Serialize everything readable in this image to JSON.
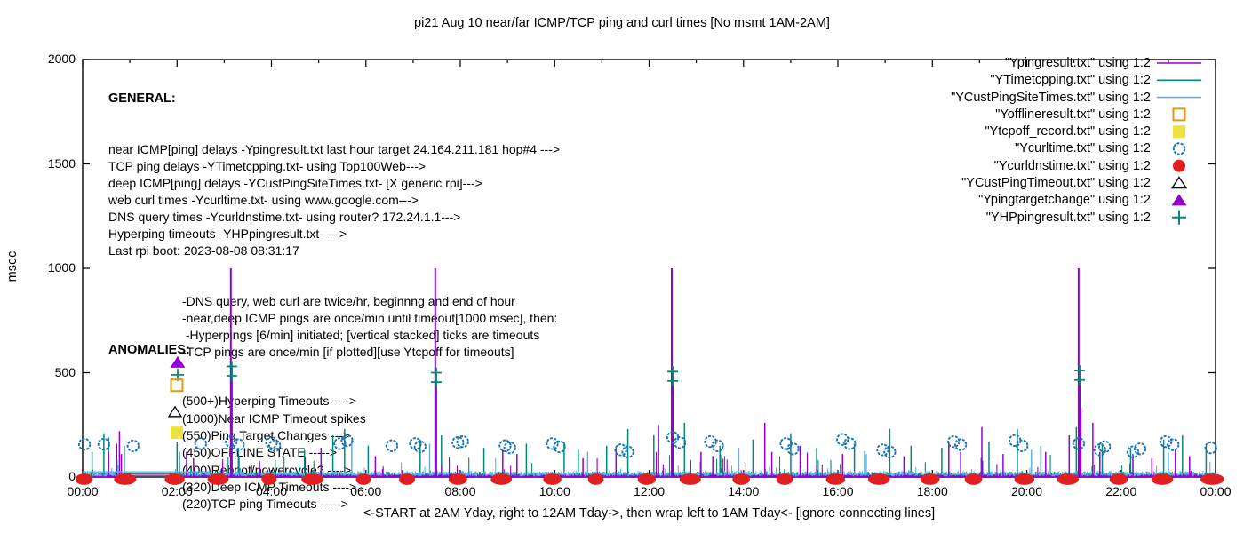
{
  "title": "pi21 Aug 10  near/far ICMP/TCP ping and curl times [No msmt 1AM-2AM]",
  "xcaption": "<-START at 2AM Yday, right to 12AM Tday->, then wrap left to 1AM Tday<- [ignore connecting lines]",
  "annotations": {
    "general": {
      "heading": "GENERAL:",
      "lines": [
        "near ICMP[ping] delays -Ypingresult.txt last hour target 24.164.211.181 hop#4 --->",
        "TCP ping delays -YTimetcpping.txt- using Top100Web--->",
        "deep ICMP[ping] delays -YCustPingSiteTimes.txt- [X generic rpi]--->",
        "web curl times -Ycurltime.txt- using www.google.com--->",
        "DNS query times -Ycurldnstime.txt- using router? 172.24.1.1--->",
        "Hyperping timeouts -YHPpingresult.txt- --->",
        "Last rpi boot: 2023-08-08 08:31:17"
      ],
      "indented_lines": [
        "-DNS query, web curl are twice/hr, beginnng and end of hour",
        "-near,deep ICMP pings are once/min until timeout[1000 msec], then:",
        " -Hyperpings [6/min] initiated; [vertical stacked] ticks are timeouts",
        "-TCP pings are once/min [if plotted][use Ytcpoff for timeouts]"
      ]
    },
    "anomalies": {
      "heading": "ANOMALIES:",
      "lines": [
        {
          "text": "(500+)Hyperping Timeouts ---->",
          "marker": "none"
        },
        {
          "text": "(1000)Near ICMP Timeout spikes",
          "marker": "none"
        },
        {
          "text": "(550)Ping Target Changes --->",
          "marker": "triangle-filled-plus"
        },
        {
          "text": "(450)OFFLINE STATE ----->",
          "marker": "square-open"
        },
        {
          "text": "(400)Reboot/powercycle? ---->",
          "marker": "none"
        },
        {
          "text": "(320)Deep ICMP Timeouts ---->",
          "marker": "triangle-open"
        },
        {
          "text": "(220)TCP ping Timeouts ----->",
          "marker": "square-filled"
        }
      ]
    }
  },
  "legend": [
    {
      "label": "\"Ypingresult.txt\" using 1:2",
      "marker": "line",
      "color": "#9400D3"
    },
    {
      "label": "\"YTimetcpping.txt\" using 1:2",
      "marker": "line",
      "color": "#00897B"
    },
    {
      "label": "\"YCustPingSiteTimes.txt\" using 1:2",
      "marker": "line",
      "color": "#56B4E9"
    },
    {
      "label": "\"Yofflineresult.txt\" using 1:2",
      "marker": "square-open",
      "color": "#E8960C"
    },
    {
      "label": "\"Ytcpoff_record.txt\" using 1:2",
      "marker": "square-filled",
      "color": "#EDE13F"
    },
    {
      "label": "\"Ycurltime.txt\" using 1:2",
      "marker": "circle-open",
      "color": "#1673B5"
    },
    {
      "label": "\"Ycurldnstime.txt\" using 1:2",
      "marker": "circle-filled",
      "color": "#E02020"
    },
    {
      "label": "\"YCustPingTimeout.txt\" using 1:2",
      "marker": "triangle-open",
      "color": "#000000"
    },
    {
      "label": "\"Ypingtargetchange\" using 1:2",
      "marker": "triangle-filled",
      "color": "#9400D3"
    },
    {
      "label": "\"YHPpingresult.txt\" using 1:2",
      "marker": "plus",
      "color": "#00897B"
    }
  ],
  "chart_data": {
    "type": "line",
    "title": "pi21 Aug 10  near/far ICMP/TCP ping and curl times [No msmt 1AM-2AM]",
    "xlabel": "<-START at 2AM Yday, right to 12AM Tday->, then wrap left to 1AM Tday<- [ignore connecting lines]",
    "ylabel": "msec",
    "x_axis": {
      "range_hours": [
        0,
        24
      ],
      "major_tick_hours": 2,
      "minor_tick_hours": 1,
      "tick_labels": [
        "00:00",
        "02:00",
        "04:00",
        "06:00",
        "08:00",
        "10:00",
        "12:00",
        "14:00",
        "16:00",
        "18:00",
        "20:00",
        "22:00",
        "00:00"
      ]
    },
    "y_axis": {
      "range": [
        0,
        2000
      ],
      "ticks": [
        0,
        500,
        1000,
        1500,
        2000
      ]
    },
    "no_measurement_gap_hours": [
      0.9,
      1.95
    ],
    "connecting_lines": [
      {
        "color": "#56B4E9",
        "from_hour": 0.0,
        "to_hour": 2.7,
        "msec": 25
      },
      {
        "color": "#00897B",
        "from_hour": 0.9,
        "to_hour": 1.95,
        "msec": 16
      },
      {
        "color": "#9400D3",
        "from_hour": 0.9,
        "to_hour": 1.95,
        "msec": 8
      }
    ],
    "noise_series": [
      {
        "name": "YTimetcpping.txt",
        "color": "#00897B",
        "seed": 42,
        "base_min": 5,
        "base_max": 26,
        "spike_prob": 0.05,
        "spike_max": 130,
        "spikes": [
          [
            0.2,
            120
          ],
          [
            0.45,
            210
          ],
          [
            0.55,
            190
          ],
          [
            0.88,
            150
          ],
          [
            2.0,
            170
          ],
          [
            2.05,
            120
          ],
          [
            3.3,
            140
          ],
          [
            4.7,
            130
          ],
          [
            5.3,
            200
          ],
          [
            5.55,
            230
          ],
          [
            6.05,
            150
          ],
          [
            7.15,
            180
          ],
          [
            7.6,
            200
          ],
          [
            8.5,
            140
          ],
          [
            9.4,
            160
          ],
          [
            10.2,
            170
          ],
          [
            10.5,
            130
          ],
          [
            11.1,
            150
          ],
          [
            11.55,
            230
          ],
          [
            12.1,
            200
          ],
          [
            12.75,
            260
          ],
          [
            13.5,
            150
          ],
          [
            14.2,
            180
          ],
          [
            15.0,
            210
          ],
          [
            15.55,
            140
          ],
          [
            16.35,
            160
          ],
          [
            17.1,
            230
          ],
          [
            17.55,
            150
          ],
          [
            18.2,
            140
          ],
          [
            19.2,
            170
          ],
          [
            19.8,
            230
          ],
          [
            20.3,
            150
          ],
          [
            21.05,
            240
          ],
          [
            21.6,
            160
          ],
          [
            22.2,
            140
          ],
          [
            22.9,
            180
          ],
          [
            23.3,
            200
          ],
          [
            23.8,
            150
          ]
        ]
      },
      {
        "name": "YCustPingSiteTimes.txt",
        "color": "#56B4E9",
        "seed": 7,
        "base_min": 3,
        "base_max": 30,
        "spike_prob": 0.03,
        "spike_max": 100,
        "spikes": [
          [
            5.7,
            180
          ],
          [
            7.35,
            160
          ],
          [
            10.7,
            120
          ],
          [
            13.9,
            140
          ],
          [
            16.6,
            110
          ],
          [
            20.1,
            130
          ],
          [
            23.0,
            120
          ]
        ]
      },
      {
        "name": "Ypingresult.txt",
        "color": "#9400D3",
        "seed": 13,
        "base_min": 2,
        "base_max": 12,
        "spike_prob": 0.02,
        "spike_max": 140,
        "spikes": [
          [
            0.55,
            120
          ],
          [
            0.72,
            160
          ],
          [
            0.78,
            220
          ],
          [
            0.82,
            110
          ],
          [
            2.2,
            120
          ],
          [
            2.35,
            90
          ],
          [
            5.05,
            140
          ],
          [
            6.2,
            100
          ],
          [
            8.9,
            130
          ],
          [
            9.2,
            110
          ],
          [
            10.6,
            90
          ],
          [
            11.3,
            140
          ],
          [
            12.2,
            250
          ],
          [
            13.1,
            120
          ],
          [
            13.35,
            100
          ],
          [
            14.45,
            260
          ],
          [
            14.6,
            120
          ],
          [
            15.2,
            150
          ],
          [
            16.1,
            110
          ],
          [
            17.4,
            100
          ],
          [
            18.35,
            170
          ],
          [
            18.6,
            120
          ],
          [
            19.05,
            240
          ],
          [
            19.5,
            110
          ],
          [
            20.4,
            120
          ],
          [
            20.9,
            200
          ],
          [
            21.4,
            260
          ],
          [
            21.55,
            120
          ],
          [
            22.25,
            110
          ],
          [
            22.65,
            90
          ],
          [
            23.15,
            130
          ],
          [
            23.45,
            100
          ]
        ],
        "timeout_spikes": [
          [
            3.14,
            1000
          ],
          [
            3.16,
            530
          ],
          [
            7.47,
            1000
          ],
          [
            7.49,
            500
          ],
          [
            12.48,
            1000
          ],
          [
            12.5,
            505
          ],
          [
            21.1,
            1000
          ],
          [
            21.12,
            510
          ],
          [
            21.14,
            330
          ]
        ]
      }
    ],
    "marker_series": [
      {
        "name": "Ycurltime.txt",
        "marker": "circle-open",
        "color": "#1673B5",
        "points": [
          [
            0.04,
            157
          ],
          [
            0.45,
            157
          ],
          [
            1.07,
            149
          ],
          [
            2.5,
            160
          ],
          [
            3.15,
            170
          ],
          [
            3.3,
            155
          ],
          [
            4.0,
            165
          ],
          [
            4.07,
            150
          ],
          [
            5.45,
            160
          ],
          [
            5.6,
            175
          ],
          [
            6.55,
            150
          ],
          [
            7.05,
            160
          ],
          [
            7.15,
            145
          ],
          [
            7.95,
            165
          ],
          [
            8.05,
            170
          ],
          [
            8.95,
            150
          ],
          [
            9.05,
            140
          ],
          [
            9.95,
            160
          ],
          [
            10.1,
            145
          ],
          [
            11.4,
            130
          ],
          [
            11.55,
            120
          ],
          [
            12.5,
            190
          ],
          [
            12.65,
            165
          ],
          [
            13.3,
            170
          ],
          [
            13.45,
            150
          ],
          [
            14.9,
            160
          ],
          [
            15.05,
            135
          ],
          [
            16.1,
            180
          ],
          [
            16.25,
            160
          ],
          [
            16.95,
            130
          ],
          [
            17.1,
            120
          ],
          [
            18.45,
            170
          ],
          [
            18.6,
            155
          ],
          [
            19.75,
            175
          ],
          [
            19.9,
            150
          ],
          [
            21.1,
            160
          ],
          [
            21.55,
            130
          ],
          [
            21.65,
            145
          ],
          [
            22.25,
            120
          ],
          [
            22.4,
            135
          ],
          [
            22.95,
            170
          ],
          [
            23.1,
            155
          ],
          [
            23.9,
            140
          ]
        ]
      },
      {
        "name": "Ycurldnstime.txt",
        "marker": "blob",
        "color": "#E02020",
        "value_msec": 0,
        "hours": [
          0.03,
          0.9,
          1.95,
          2.87,
          3.95,
          4.87,
          5.95,
          6.87,
          7.95,
          8.87,
          9.95,
          10.87,
          11.95,
          12.87,
          13.95,
          14.87,
          15.95,
          16.87,
          17.95,
          18.87,
          19.95,
          20.87,
          21.95,
          22.87,
          23.93
        ]
      },
      {
        "name": "YHPpingresult.txt",
        "marker": "plus",
        "color": "#00897B",
        "points": [
          [
            3.16,
            530
          ],
          [
            3.16,
            485
          ],
          [
            7.49,
            500
          ],
          [
            7.49,
            455
          ],
          [
            12.5,
            505
          ],
          [
            12.5,
            460
          ],
          [
            21.12,
            510
          ],
          [
            21.12,
            465
          ]
        ]
      }
    ]
  }
}
